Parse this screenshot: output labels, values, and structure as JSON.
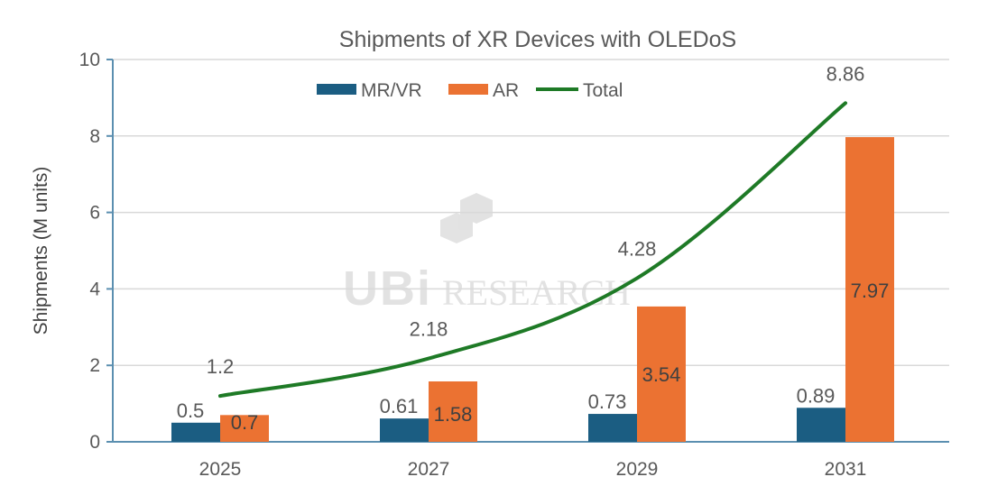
{
  "chart_data": {
    "type": "bar",
    "title": "Shipments of XR Devices with OLEDoS",
    "xlabel": "",
    "ylabel": "Shipments (M units)",
    "ylim": [
      0,
      10
    ],
    "yticks": [
      "0",
      "2",
      "4",
      "6",
      "8",
      "10"
    ],
    "ytick_values": [
      0,
      2,
      4,
      6,
      8,
      10
    ],
    "grid": true,
    "legend": "top-center",
    "categories": [
      "2025",
      "2027",
      "2029",
      "2031"
    ],
    "series": [
      {
        "name": "MR/VR",
        "type": "bar",
        "color": "#1b5d82",
        "values": [
          0.5,
          0.61,
          0.73,
          0.89
        ],
        "labels": [
          "0.5",
          "0.61",
          "0.73",
          "0.89"
        ]
      },
      {
        "name": "AR",
        "type": "bar",
        "color": "#eb7232",
        "values": [
          0.7,
          1.58,
          3.54,
          7.97
        ],
        "labels": [
          "0.7",
          "1.58",
          "3.54",
          "7.97"
        ]
      },
      {
        "name": "Total",
        "type": "line",
        "color": "#1e7a26",
        "values": [
          1.2,
          2.18,
          4.28,
          8.86
        ],
        "labels": [
          "1.2",
          "2.18",
          "4.28",
          "8.86"
        ]
      }
    ]
  },
  "watermark": "UBI RESEARCH"
}
